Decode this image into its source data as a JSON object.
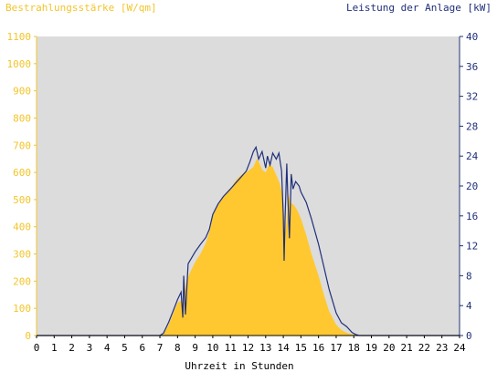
{
  "chart_data": {
    "type": "area",
    "left_axis_label": "Bestrahlungsstärke [W/qm]",
    "right_axis_label": "Leistung der Anlage [kW]",
    "xlabel": "Uhrzeit in Stunden",
    "xlim": [
      0,
      24
    ],
    "x_ticks": [
      "0",
      "1",
      "2",
      "3",
      "4",
      "5",
      "6",
      "7",
      "8",
      "9",
      "10",
      "11",
      "12",
      "13",
      "14",
      "15",
      "16",
      "17",
      "18",
      "19",
      "20",
      "21",
      "22",
      "23",
      "24"
    ],
    "left_ylim": [
      0,
      1100
    ],
    "left_ticks": [
      "0",
      "100",
      "200",
      "300",
      "400",
      "500",
      "600",
      "700",
      "800",
      "900",
      "1000",
      "1100"
    ],
    "right_ylim": [
      0,
      40
    ],
    "right_ticks": [
      "0",
      "4",
      "8",
      "12",
      "16",
      "20",
      "24",
      "28",
      "32",
      "36",
      "40"
    ],
    "grid": false,
    "colors": {
      "background": "#dcdcdc",
      "irradiance": "#ffc830",
      "power": "#1f2f7a",
      "left_axis": "#f2c52a",
      "right_axis": "#1f2f7a"
    },
    "series": [
      {
        "axis": "left",
        "kind": "area",
        "x": [
          0,
          7.0,
          7.2,
          7.5,
          7.8,
          8.0,
          8.2,
          8.3,
          8.4,
          8.5,
          8.7,
          9.0,
          9.3,
          9.6,
          9.8,
          10.0,
          10.3,
          10.6,
          11.0,
          11.3,
          11.6,
          11.9,
          12.1,
          12.3,
          12.5,
          12.6,
          12.8,
          13.0,
          13.2,
          13.4,
          13.6,
          13.8,
          14.0,
          14.1,
          14.2,
          14.3,
          14.4,
          14.6,
          14.8,
          15.0,
          15.3,
          15.6,
          16.0,
          16.3,
          16.6,
          17.0,
          17.3,
          17.6,
          17.9,
          18.2,
          18.5,
          24
        ],
        "y": [
          0,
          0,
          5,
          40,
          90,
          120,
          130,
          90,
          150,
          200,
          230,
          270,
          300,
          340,
          380,
          440,
          480,
          510,
          540,
          570,
          590,
          600,
          610,
          620,
          650,
          640,
          610,
          600,
          630,
          620,
          590,
          560,
          500,
          380,
          420,
          520,
          490,
          480,
          460,
          430,
          370,
          300,
          220,
          150,
          90,
          40,
          20,
          10,
          5,
          0,
          0,
          0
        ]
      },
      {
        "axis": "right",
        "kind": "line",
        "x": [
          0,
          7.0,
          7.2,
          7.5,
          7.8,
          8.0,
          8.2,
          8.3,
          8.35,
          8.45,
          8.6,
          8.8,
          9.0,
          9.3,
          9.6,
          9.8,
          10.0,
          10.3,
          10.6,
          11.0,
          11.3,
          11.6,
          11.9,
          12.1,
          12.3,
          12.45,
          12.6,
          12.8,
          13.0,
          13.1,
          13.25,
          13.4,
          13.6,
          13.75,
          13.9,
          14.0,
          14.05,
          14.1,
          14.2,
          14.25,
          14.35,
          14.45,
          14.55,
          14.7,
          14.9,
          15.0,
          15.3,
          15.6,
          16.0,
          16.3,
          16.6,
          17.0,
          17.3,
          17.6,
          17.9,
          18.1,
          18.3,
          18.5,
          24
        ],
        "y": [
          0,
          0,
          0.3,
          1.8,
          3.6,
          4.8,
          5.8,
          2.4,
          8.0,
          2.8,
          9.6,
          10.4,
          11.2,
          12.2,
          13.1,
          14.2,
          16.2,
          17.6,
          18.6,
          19.6,
          20.4,
          21.2,
          22.0,
          23.2,
          24.6,
          25.2,
          23.6,
          24.6,
          22.4,
          24.0,
          22.8,
          24.4,
          23.6,
          24.4,
          22.0,
          16.0,
          10.0,
          15.6,
          23.0,
          19.0,
          13.0,
          21.6,
          19.6,
          20.6,
          20.0,
          19.2,
          17.8,
          15.6,
          12.2,
          9.2,
          6.2,
          3.0,
          1.7,
          1.2,
          0.4,
          0.15,
          0,
          0,
          0
        ]
      }
    ]
  }
}
